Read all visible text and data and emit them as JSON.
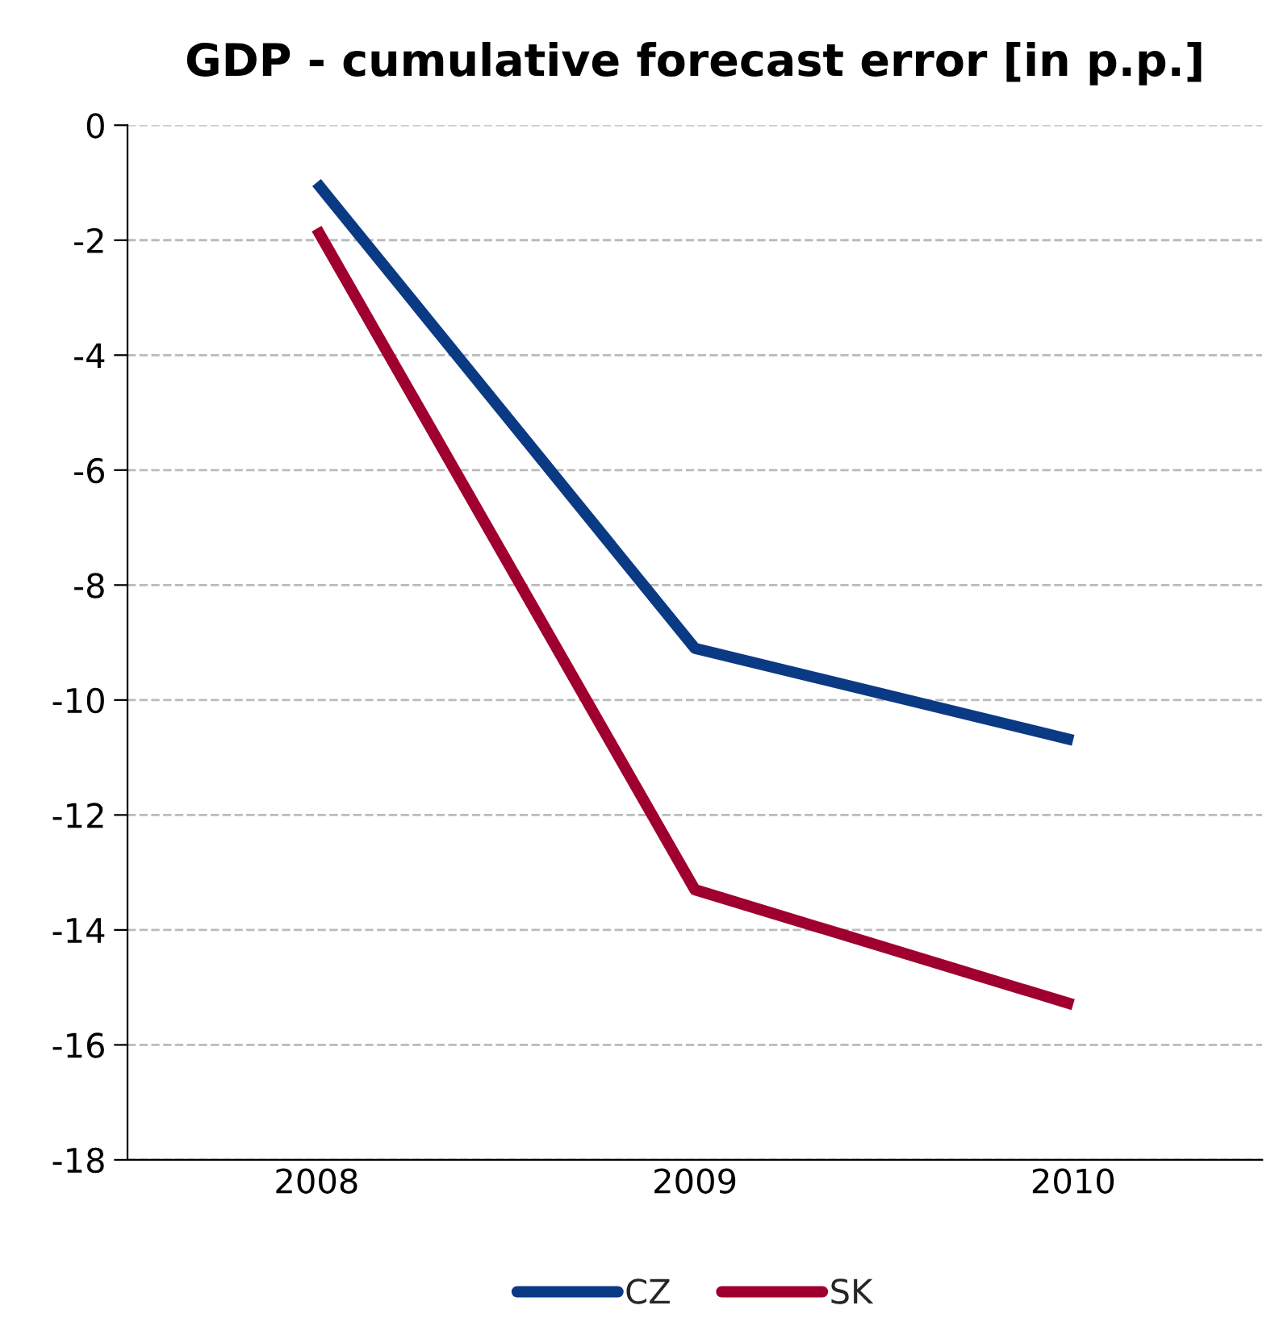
{
  "chart_data": {
    "type": "line",
    "title": "GDP - cumulative forecast error [in p.p.]",
    "categories": [
      "2008",
      "2009",
      "2010"
    ],
    "series": [
      {
        "name": "CZ",
        "color": "#0b3a84",
        "values": [
          -1.0,
          -9.1,
          -10.7
        ]
      },
      {
        "name": "SK",
        "color": "#a0002f",
        "values": [
          -1.8,
          -13.3,
          -15.3
        ]
      }
    ],
    "ylim": [
      -18,
      0
    ],
    "yticks": [
      -18,
      -16,
      -14,
      -12,
      -10,
      -8,
      -6,
      -4,
      -2,
      0
    ],
    "grid": "y",
    "legend": "bottom",
    "marker": "none",
    "line_style": "solid"
  }
}
